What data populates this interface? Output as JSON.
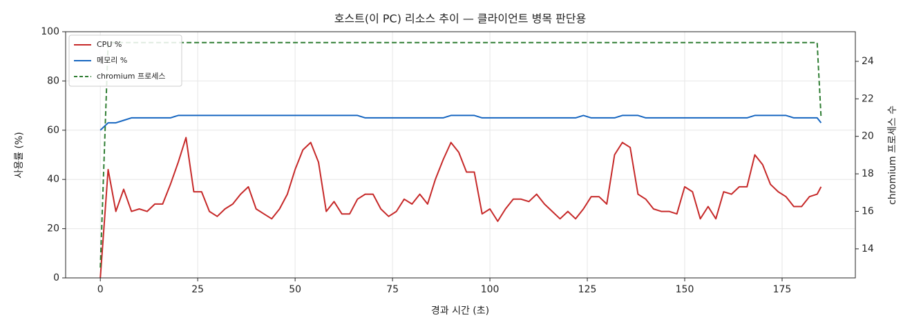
{
  "chart_data": {
    "type": "line",
    "title": "호스트(이 PC) 리소스 추이 — 클라이언트 병목 판단용",
    "xlabel": "경과 시간 (초)",
    "ylabel": "사용률 (%)",
    "y2label": "chromium 프로세스 수",
    "x": [
      0,
      2,
      4,
      6,
      8,
      10,
      12,
      14,
      16,
      18,
      20,
      22,
      24,
      26,
      28,
      30,
      32,
      34,
      36,
      38,
      40,
      42,
      44,
      46,
      48,
      50,
      52,
      54,
      56,
      58,
      60,
      62,
      64,
      66,
      68,
      70,
      72,
      74,
      76,
      78,
      80,
      82,
      84,
      86,
      88,
      90,
      92,
      94,
      96,
      98,
      100,
      102,
      104,
      106,
      108,
      110,
      112,
      114,
      116,
      118,
      120,
      122,
      124,
      126,
      128,
      130,
      132,
      134,
      136,
      138,
      140,
      142,
      144,
      146,
      148,
      150,
      152,
      154,
      156,
      158,
      160,
      162,
      164,
      166,
      168,
      170,
      172,
      174,
      176,
      178,
      180,
      182,
      184,
      185
    ],
    "series": [
      {
        "name": "CPU %",
        "color": "#c62828",
        "dash": false,
        "values": [
          0,
          44,
          27,
          36,
          27,
          28,
          27,
          30,
          30,
          38,
          47,
          57,
          35,
          35,
          27,
          25,
          28,
          30,
          34,
          37,
          28,
          26,
          24,
          28,
          34,
          44,
          52,
          55,
          47,
          27,
          31,
          26,
          26,
          32,
          34,
          34,
          28,
          25,
          27,
          32,
          30,
          34,
          30,
          40,
          48,
          55,
          51,
          43,
          43,
          26,
          28,
          23,
          28,
          32,
          32,
          31,
          34,
          30,
          27,
          24,
          27,
          24,
          28,
          33,
          33,
          30,
          50,
          55,
          53,
          34,
          32,
          28,
          27,
          27,
          26,
          37,
          35,
          24,
          29,
          24,
          35,
          34,
          37,
          37,
          50,
          46,
          38,
          35,
          33,
          29,
          29,
          33,
          34,
          37
        ]
      },
      {
        "name": "메모리 %",
        "color": "#1565c0",
        "dash": false,
        "values": [
          60,
          63,
          63,
          64,
          65,
          65,
          65,
          65,
          65,
          65,
          66,
          66,
          66,
          66,
          66,
          66,
          66,
          66,
          66,
          66,
          66,
          66,
          66,
          66,
          66,
          66,
          66,
          66,
          66,
          66,
          66,
          66,
          66,
          66,
          65,
          65,
          65,
          65,
          65,
          65,
          65,
          65,
          65,
          65,
          65,
          66,
          66,
          66,
          66,
          65,
          65,
          65,
          65,
          65,
          65,
          65,
          65,
          65,
          65,
          65,
          65,
          65,
          66,
          65,
          65,
          65,
          65,
          66,
          66,
          66,
          65,
          65,
          65,
          65,
          65,
          65,
          65,
          65,
          65,
          65,
          65,
          65,
          65,
          65,
          66,
          66,
          66,
          66,
          66,
          65,
          65,
          65,
          65,
          63
        ]
      },
      {
        "name": "chromium 프로세스",
        "color": "#2e7d32",
        "dash": true,
        "axis": "y2",
        "values": [
          13,
          25,
          25,
          25,
          25,
          25,
          25,
          25,
          25,
          25,
          25,
          25,
          25,
          25,
          25,
          25,
          25,
          25,
          25,
          25,
          25,
          25,
          25,
          25,
          25,
          25,
          25,
          25,
          25,
          25,
          25,
          25,
          25,
          25,
          25,
          25,
          25,
          25,
          25,
          25,
          25,
          25,
          25,
          25,
          25,
          25,
          25,
          25,
          25,
          25,
          25,
          25,
          25,
          25,
          25,
          25,
          25,
          25,
          25,
          25,
          25,
          25,
          25,
          25,
          25,
          25,
          25,
          25,
          25,
          25,
          25,
          25,
          25,
          25,
          25,
          25,
          25,
          25,
          25,
          25,
          25,
          25,
          25,
          25,
          25,
          25,
          25,
          25,
          25,
          25,
          25,
          25,
          25,
          21
        ]
      }
    ],
    "xlim": [
      -8.9,
      193.8
    ],
    "xticks": [
      0,
      25,
      50,
      75,
      100,
      125,
      150,
      175
    ],
    "ylim": [
      0,
      100
    ],
    "yticks": [
      0,
      20,
      40,
      60,
      80,
      100
    ],
    "y2lim": [
      12.45,
      25.58
    ],
    "y2ticks": [
      14,
      16,
      18,
      20,
      22,
      24
    ],
    "grid": true,
    "legend": "upper-left"
  }
}
